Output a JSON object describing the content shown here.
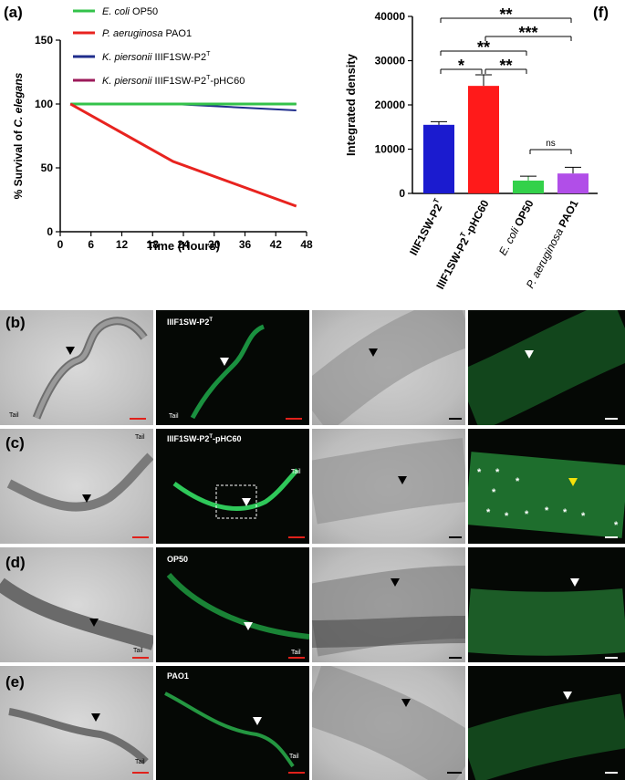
{
  "panels": {
    "a": "(a)",
    "f": "(f)",
    "b": "(b)",
    "c": "(c)",
    "d": "(d)",
    "e": "(e)"
  },
  "chart_data": [
    {
      "type": "line",
      "ylabel_prefix": "% Survival of ",
      "ylabel_species": "C. elegans",
      "xlabel": "Time (Hours)",
      "xlim": [
        0,
        48
      ],
      "ylim": [
        0,
        150
      ],
      "xticks": [
        0,
        6,
        12,
        18,
        24,
        30,
        36,
        42,
        48
      ],
      "yticks": [
        0,
        50,
        100,
        150
      ],
      "legend_placement": "top",
      "series": [
        {
          "name_italic": "E. coli",
          "name_rest": " OP50",
          "color": "#33c24a",
          "x": [
            2,
            46
          ],
          "y": [
            100,
            100
          ]
        },
        {
          "name_italic": "P. aeruginosa",
          "name_rest": " PAO1",
          "color": "#e8231f",
          "x": [
            2,
            22,
            46
          ],
          "y": [
            100,
            55,
            20
          ]
        },
        {
          "name_italic": "K. piersonii",
          "name_rest": " IIIF1SW-P2",
          "name_sup": "T",
          "color": "#1f2d8c",
          "x": [
            2,
            22,
            46
          ],
          "y": [
            100,
            100,
            95
          ]
        },
        {
          "name_italic": "K. piersonii",
          "name_rest": " IIIF1SW-P2",
          "name_sup": "T",
          "name_suffix": "-pHC60",
          "color": "#9c1a5a",
          "x": [
            2,
            46
          ],
          "y": [
            100,
            100
          ]
        }
      ]
    },
    {
      "type": "bar",
      "ylabel": "Integrated density",
      "ylim": [
        0,
        40000
      ],
      "yticks": [
        0,
        10000,
        20000,
        30000,
        40000
      ],
      "categories": [
        {
          "main": "IIIF1SW-P2",
          "sup": "T",
          "suffix": ""
        },
        {
          "main": "IIIF1SW-P2",
          "sup": "T",
          "suffix": "-pHC60"
        },
        {
          "italic": "E. coli",
          "rest": " OP50"
        },
        {
          "italic": "P. aeruginosa",
          "rest": " PAO1"
        }
      ],
      "values": [
        15500,
        24300,
        2900,
        4500
      ],
      "errors": [
        700,
        2500,
        1000,
        1400
      ],
      "colors": [
        "#1b1bcf",
        "#ff1a1a",
        "#33d14a",
        "#b14ee8"
      ],
      "significance": [
        {
          "from": 0,
          "to": 1,
          "label": "*",
          "level": 1
        },
        {
          "from": 1,
          "to": 2,
          "label": "**",
          "level": 1
        },
        {
          "from": 2,
          "to": 3,
          "label": "ns",
          "level": 0
        },
        {
          "from": 0,
          "to": 2,
          "label": "**",
          "level": 2
        },
        {
          "from": 1,
          "to": 3,
          "label": "***",
          "level": 3
        },
        {
          "from": 0,
          "to": 3,
          "label": "**",
          "level": 4
        }
      ]
    }
  ],
  "micrographs": {
    "row_b_label_main": "IIIF1SW-P2",
    "row_b_label_sup": "T",
    "row_c_label_main": "IIIF1SW-P2",
    "row_c_label_sup": "T",
    "row_c_label_suffix": "-pHC60",
    "row_d_label": "OP50",
    "row_e_label": "PAO1",
    "tail": "Tail"
  }
}
